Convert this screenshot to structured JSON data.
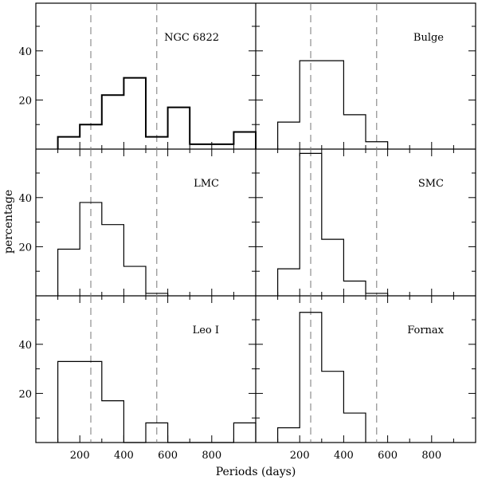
{
  "chart_data": {
    "type": "histogram-grid",
    "xlabel": "Periods (days)",
    "ylabel": "percentage",
    "xlim": [
      0,
      1000
    ],
    "ylim": [
      0,
      58
    ],
    "xticks": [
      200,
      400,
      600,
      800
    ],
    "yticks": [
      20,
      40
    ],
    "reference_lines": [
      250,
      550
    ],
    "panels": [
      {
        "name": "NGC 6822",
        "bins": [
          [
            100,
            200,
            5
          ],
          [
            200,
            300,
            10
          ],
          [
            300,
            400,
            22
          ],
          [
            400,
            500,
            29
          ],
          [
            500,
            600,
            5
          ],
          [
            600,
            700,
            17
          ],
          [
            700,
            800,
            2
          ],
          [
            800,
            900,
            2
          ],
          [
            900,
            1000,
            7
          ]
        ]
      },
      {
        "name": "Bulge",
        "bins": [
          [
            100,
            200,
            11
          ],
          [
            200,
            300,
            36
          ],
          [
            300,
            400,
            36
          ],
          [
            400,
            500,
            14
          ],
          [
            500,
            600,
            3
          ]
        ]
      },
      {
        "name": "LMC",
        "bins": [
          [
            100,
            200,
            19
          ],
          [
            200,
            300,
            38
          ],
          [
            300,
            400,
            29
          ],
          [
            400,
            500,
            12
          ],
          [
            500,
            600,
            1
          ]
        ]
      },
      {
        "name": "SMC",
        "bins": [
          [
            100,
            200,
            11
          ],
          [
            200,
            300,
            58
          ],
          [
            300,
            400,
            23
          ],
          [
            400,
            500,
            6
          ],
          [
            500,
            600,
            1
          ]
        ]
      },
      {
        "name": "Leo I",
        "bins": [
          [
            100,
            200,
            33
          ],
          [
            200,
            300,
            33
          ],
          [
            300,
            400,
            17
          ],
          [
            400,
            500,
            0
          ],
          [
            500,
            600,
            8
          ],
          [
            600,
            700,
            0
          ],
          [
            700,
            800,
            0
          ],
          [
            800,
            900,
            0
          ],
          [
            900,
            1000,
            8
          ]
        ]
      },
      {
        "name": "Fornax",
        "bins": [
          [
            100,
            200,
            6
          ],
          [
            200,
            300,
            53
          ],
          [
            300,
            400,
            29
          ],
          [
            400,
            500,
            12
          ]
        ]
      }
    ]
  }
}
